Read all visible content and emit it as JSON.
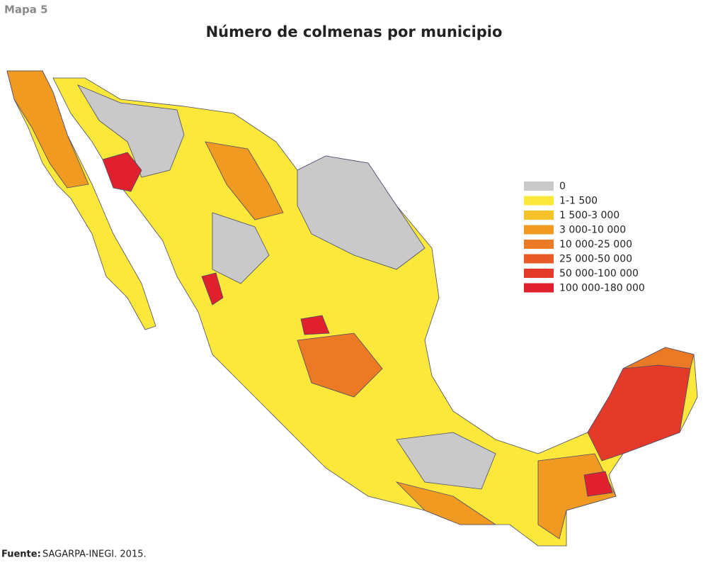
{
  "label": "Mapa 5",
  "title": "Número de colmenas por municipio",
  "legend": {
    "items": [
      {
        "label": "0",
        "color": "#c9c9c9"
      },
      {
        "label": "1-1 500",
        "color": "#fbe83a"
      },
      {
        "label": "1 500-3 000",
        "color": "#f5c22a"
      },
      {
        "label": "3 000-10 000",
        "color": "#f09a22"
      },
      {
        "label": "10 000-25 000",
        "color": "#ec7a24"
      },
      {
        "label": "25 000-50 000",
        "color": "#e85a26"
      },
      {
        "label": "50 000-100 000",
        "color": "#e33a2a"
      },
      {
        "label": "100 000-180 000",
        "color": "#e0202c"
      }
    ]
  },
  "source": {
    "prefix": "Fuente:",
    "text": "SAGARPA-INEGI. 2015."
  }
}
